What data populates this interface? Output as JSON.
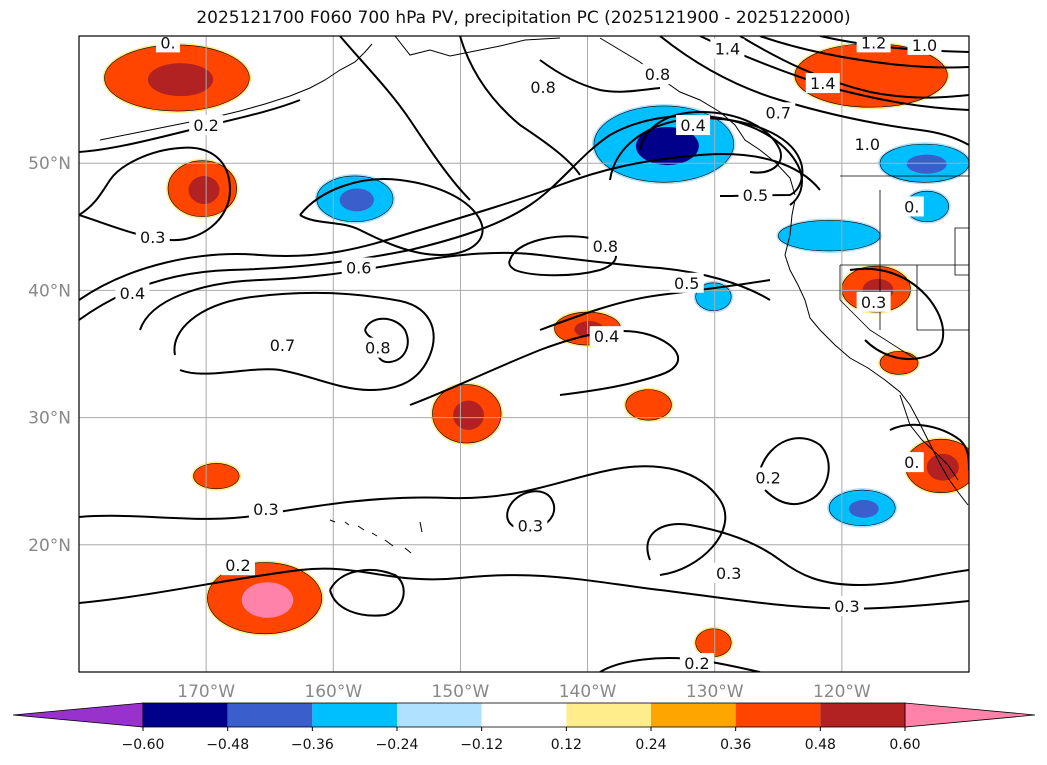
{
  "title": "2025121700 F060 700 hPa PV, precipitation PC (2025121900 - 2025122000)",
  "chart_data": {
    "type": "map-contour-filled",
    "title": "2025121700 F060 700 hPa PV, precipitation PC (2025121900 - 2025122000)",
    "lon_range": [
      -180,
      -110
    ],
    "lat_range": [
      10,
      60
    ],
    "lon_ticks": [
      -170,
      -160,
      -150,
      -140,
      -130,
      -120
    ],
    "lon_tick_labels": [
      "170°W",
      "160°W",
      "150°W",
      "140°W",
      "130°W",
      "120°W"
    ],
    "lat_ticks": [
      20,
      30,
      40,
      50
    ],
    "lat_tick_labels": [
      "20°N",
      "30°N",
      "40°N",
      "50°N"
    ],
    "grid": true,
    "contour_field": "700 hPa PV",
    "contour_labels": [
      {
        "text": "1.4",
        "lon": -129,
        "lat": 59
      },
      {
        "text": "1.2",
        "lon": -117.5,
        "lat": 59.5
      },
      {
        "text": "1.0",
        "lon": -113.5,
        "lat": 59.3
      },
      {
        "text": "0.8",
        "lon": -134.5,
        "lat": 57
      },
      {
        "text": "0.8",
        "lon": -143.5,
        "lat": 56
      },
      {
        "text": "1.4",
        "lon": -121.5,
        "lat": 56.3
      },
      {
        "text": "0.7",
        "lon": -125,
        "lat": 54
      },
      {
        "text": "1.0",
        "lon": -118,
        "lat": 51.5
      },
      {
        "text": "0.2",
        "lon": -170,
        "lat": 53
      },
      {
        "text": "0.4",
        "lon": -131.7,
        "lat": 53
      },
      {
        "text": "0.5",
        "lon": -126.8,
        "lat": 47.5
      },
      {
        "text": "0.3",
        "lon": -174.2,
        "lat": 44.2
      },
      {
        "text": "0.8",
        "lon": -138.6,
        "lat": 43.5
      },
      {
        "text": "0.6",
        "lon": -158,
        "lat": 41.8
      },
      {
        "text": "0.4",
        "lon": -175.8,
        "lat": 39.8
      },
      {
        "text": "0.5",
        "lon": -132.2,
        "lat": 40.6
      },
      {
        "text": "0.3",
        "lon": -117.5,
        "lat": 39.1
      },
      {
        "text": "0.8",
        "lon": -156.5,
        "lat": 35.5
      },
      {
        "text": "0.7",
        "lon": -164,
        "lat": 35.7
      },
      {
        "text": "0.4",
        "lon": -138.5,
        "lat": 36.4
      },
      {
        "text": "0.2",
        "lon": -125.8,
        "lat": 25.3
      },
      {
        "text": "0.3",
        "lon": -165.3,
        "lat": 22.8
      },
      {
        "text": "0.3",
        "lon": -144.5,
        "lat": 21.5
      },
      {
        "text": "0.2",
        "lon": -167.5,
        "lat": 18.4
      },
      {
        "text": "0.3",
        "lon": -128.9,
        "lat": 17.8
      },
      {
        "text": "0.3",
        "lon": -119.6,
        "lat": 15.2
      },
      {
        "text": "0.2",
        "lon": -131.4,
        "lat": 10.7
      },
      {
        "text": "0.",
        "lon": -114.5,
        "lat": 26.5
      },
      {
        "text": "0.",
        "lon": -173,
        "lat": 59.5
      },
      {
        "text": "0.",
        "lon": -114.5,
        "lat": 46.6
      }
    ],
    "fill_field": "precipitation PC",
    "colorbar": {
      "bounds": [
        -0.72,
        -0.6,
        -0.48,
        -0.36,
        -0.24,
        -0.12,
        0.12,
        0.24,
        0.36,
        0.48,
        0.6,
        0.72
      ],
      "colors": [
        "#9932cc",
        "#00008b",
        "#3a5fcd",
        "#00bfff",
        "#b0e2ff",
        "#ffffff",
        "#ffec8b",
        "#ffa500",
        "#ff4500",
        "#b22222",
        "#ff82ab"
      ],
      "tick_values": [
        -0.6,
        -0.48,
        -0.36,
        -0.24,
        -0.12,
        0.12,
        0.24,
        0.36,
        0.48,
        0.6
      ],
      "tick_labels": [
        "−0.60",
        "−0.48",
        "−0.36",
        "−0.24",
        "−0.12",
        "0.12",
        "0.24",
        "0.36",
        "0.48",
        "0.60"
      ],
      "extend": "both"
    },
    "precip_regions": [
      {
        "id": "gulf-alaska-neg",
        "lon": -134,
        "lat": 51.5,
        "rlon": 5.5,
        "rlat": 3,
        "level": -0.36,
        "core": -0.6
      },
      {
        "id": "central-pacific-neg",
        "lon": -158.3,
        "lat": 47.2,
        "rlon": 3,
        "rlat": 1.8,
        "level": -0.36,
        "core": -0.48
      },
      {
        "id": "nw-pos",
        "lon": -172.3,
        "lat": 56.7,
        "rlon": 5.7,
        "rlat": 2.6,
        "level": 0.36,
        "core": 0.48
      },
      {
        "id": "west-pos",
        "lon": -170.3,
        "lat": 48,
        "rlon": 2.7,
        "rlat": 2.2,
        "level": 0.36,
        "core": 0.48
      },
      {
        "id": "ne-pos",
        "lon": -117.7,
        "lat": 56.9,
        "rlon": 6,
        "rlat": 2.5,
        "level": 0.36,
        "core": 0.36
      },
      {
        "id": "pnw-neg",
        "lon": -113.5,
        "lat": 50,
        "rlon": 3.5,
        "rlat": 1.5,
        "level": -0.36,
        "core": -0.48
      },
      {
        "id": "oregon-neg",
        "lon": -121,
        "lat": 44.3,
        "rlon": 4,
        "rlat": 1.2,
        "level": -0.36,
        "core": -0.36
      },
      {
        "id": "california-pos",
        "lon": -117.3,
        "lat": 40.1,
        "rlon": 2.7,
        "rlat": 1.8,
        "level": 0.36,
        "core": 0.48
      },
      {
        "id": "baja-pos",
        "lon": -112.2,
        "lat": 26.2,
        "rlon": 2.8,
        "rlat": 2.1,
        "level": 0.36,
        "core": 0.48
      },
      {
        "id": "mid-pacific-pos",
        "lon": -149.5,
        "lat": 30.3,
        "rlon": 2.7,
        "rlat": 2.3,
        "level": 0.36,
        "core": 0.48
      },
      {
        "id": "sub-trop-pos",
        "lon": -140,
        "lat": 37,
        "rlon": 2.6,
        "rlat": 1.3,
        "level": 0.36,
        "core": 0.48
      },
      {
        "id": "sw-pos",
        "lon": -165.4,
        "lat": 15.8,
        "rlon": 4.5,
        "rlat": 2.8,
        "level": 0.36,
        "core": 0.6
      },
      {
        "id": "south-neg",
        "lon": -118.4,
        "lat": 22.9,
        "rlon": 2.6,
        "rlat": 1.4,
        "level": -0.36,
        "core": -0.48
      },
      {
        "id": "east-pos",
        "lon": -135.2,
        "lat": 31,
        "rlon": 1.8,
        "rlat": 1.2,
        "level": 0.36,
        "core": 0.36
      },
      {
        "id": "south-pos2",
        "lon": -130.1,
        "lat": 12.3,
        "rlon": 1.4,
        "rlat": 1.1,
        "level": 0.36,
        "core": 0.36
      },
      {
        "id": "west-small-pos",
        "lon": -169.2,
        "lat": 25.4,
        "rlon": 1.8,
        "rlat": 1,
        "level": 0.36,
        "core": 0.36
      },
      {
        "id": "baja-north-pos",
        "lon": -115.5,
        "lat": 34.3,
        "rlon": 1.5,
        "rlat": 0.9,
        "level": 0.36,
        "core": 0.36
      },
      {
        "id": "bc-neg",
        "lon": -130.1,
        "lat": 39.5,
        "rlon": 1.4,
        "rlat": 1.1,
        "level": -0.36,
        "core": -0.36
      },
      {
        "id": "rockies-neg",
        "lon": -113.3,
        "lat": 46.6,
        "rlon": 1.7,
        "rlat": 1.2,
        "level": -0.36,
        "core": -0.36
      }
    ]
  }
}
